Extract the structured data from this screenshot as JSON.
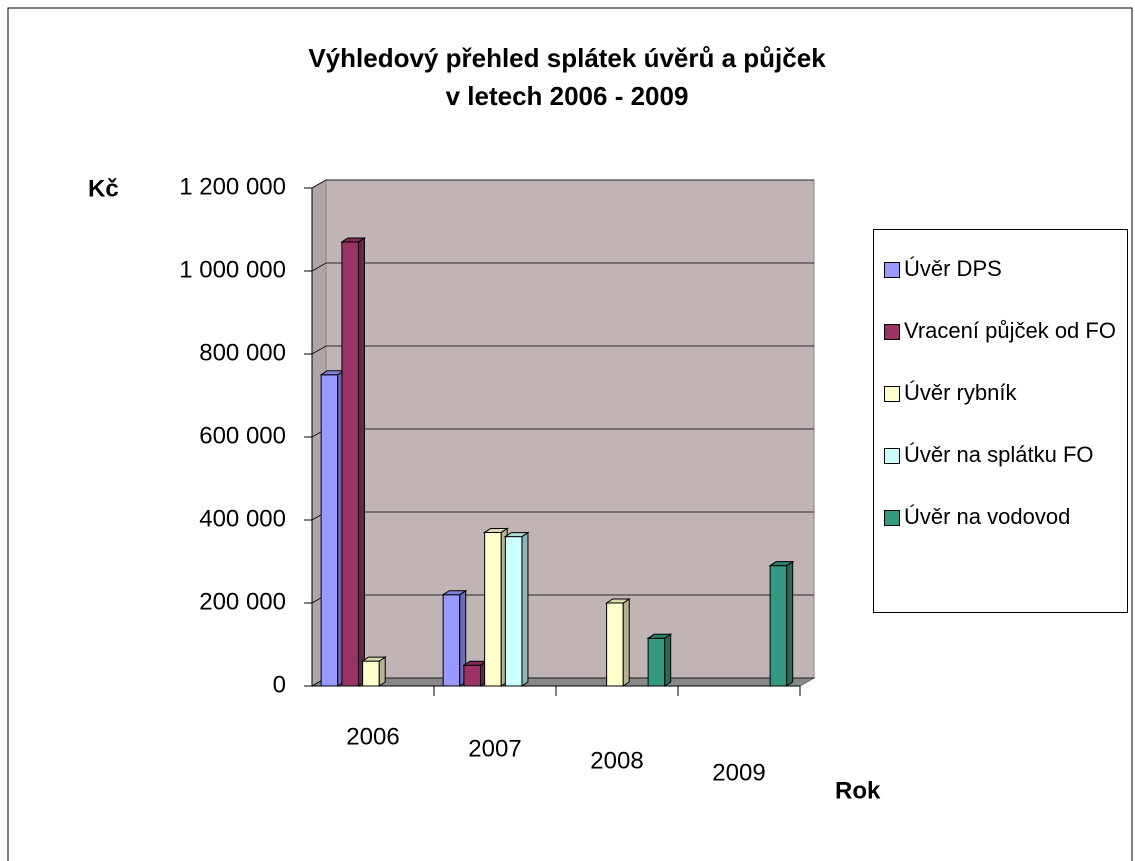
{
  "chart_data": {
    "type": "bar3d",
    "title": "Výhledový přehled splátek úvěrů a půjček",
    "subtitle": "v letech 2006 - 2009",
    "y_label": "Kč",
    "x_label": "Rok",
    "categories": [
      "2006",
      "2007",
      "2008",
      "2009"
    ],
    "series": [
      {
        "name": "Úvěr DPS",
        "color": "#9999ff",
        "values": [
          750000,
          220000,
          null,
          null
        ]
      },
      {
        "name": "Vracení půjček od FO",
        "color": "#993366",
        "values": [
          1070000,
          50000,
          null,
          null
        ]
      },
      {
        "name": "Úvěr rybník",
        "color": "#ffffcc",
        "values": [
          60000,
          370000,
          200000,
          null
        ]
      },
      {
        "name": "Úvěr na splátku FO",
        "color": "#ccffff",
        "values": [
          null,
          360000,
          null,
          null
        ]
      },
      {
        "name": "Úvěr na vodovod",
        "color": "#339980",
        "values": [
          null,
          null,
          115000,
          290000
        ]
      }
    ],
    "ylim": [
      0,
      1200000
    ],
    "yticks": [
      0,
      {
        "value": 200000,
        "label": "200 000"
      },
      {
        "value": 400000,
        "label": "400 000"
      },
      {
        "value": 600000,
        "label": "600 000"
      },
      {
        "value": 800000,
        "label": "800 000"
      },
      {
        "value": 1000000,
        "label": "1 000 000"
      },
      {
        "value": 1200000,
        "label": "1 200 000"
      }
    ],
    "grid": true,
    "legend": "right"
  }
}
